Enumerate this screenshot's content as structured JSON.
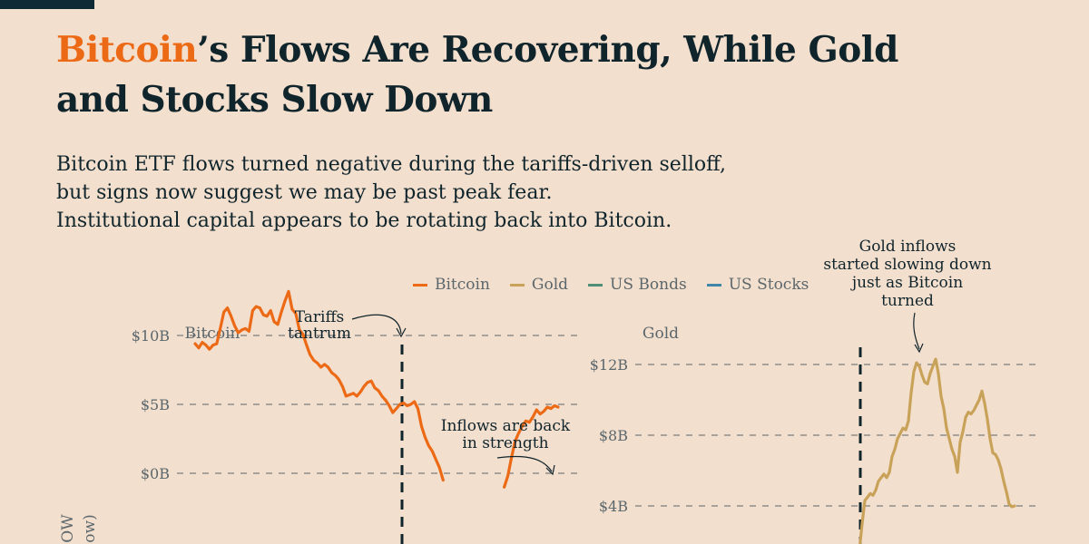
{
  "header": {
    "title_highlight": "Bitcoin",
    "title_rest": "’s Flows Are Recovering, While Gold",
    "title_line2": "and Stocks Slow Down",
    "subtitle": [
      "Bitcoin ETF flows turned negative during the tariffs-driven selloff,",
      "but signs now suggest we may be past peak fear.",
      "Institutional capital appears to be rotating back into Bitcoin."
    ]
  },
  "legend": [
    {
      "label": "Bitcoin",
      "color": "#ec6a16"
    },
    {
      "label": "Gold",
      "color": "#c9a25a"
    },
    {
      "label": "US Bonds",
      "color": "#4f8f78"
    },
    {
      "label": "US Stocks",
      "color": "#3f86a8"
    }
  ],
  "annotations": {
    "tariffs": [
      "Tariffs",
      "tantrum"
    ],
    "inflows": [
      "Inflows are back",
      "in strength"
    ],
    "gold_note": [
      "Gold inflows",
      "started slowing down",
      "just as Bitcoin",
      "turned"
    ]
  },
  "y_axis_label_fragments": [
    "OW",
    "ow)"
  ],
  "chart_data": [
    {
      "type": "line",
      "title": "Bitcoin",
      "series": [
        {
          "name": "Bitcoin",
          "color": "#ec6a16"
        }
      ],
      "y_ticks": [
        {
          "value": 10,
          "label": "$10B"
        },
        {
          "value": 5,
          "label": "$5B"
        },
        {
          "value": 0,
          "label": "$0B"
        }
      ],
      "grid": "dashed horizontal",
      "event_marker_index": 63,
      "values": [
        9.4,
        9.1,
        9.5,
        9.3,
        9.0,
        9.3,
        9.4,
        10.5,
        11.7,
        12.0,
        11.4,
        10.7,
        10.2,
        10.4,
        10.5,
        10.3,
        11.8,
        12.1,
        12.0,
        11.5,
        11.4,
        11.8,
        11.0,
        10.8,
        11.7,
        12.5,
        13.2,
        11.9,
        11.6,
        10.4,
        10.1,
        9.3,
        8.6,
        8.2,
        8.0,
        7.7,
        7.9,
        7.7,
        7.3,
        7.1,
        6.8,
        6.3,
        5.6,
        5.7,
        5.8,
        5.6,
        5.9,
        6.3,
        6.6,
        6.7,
        6.2,
        6.0,
        5.6,
        5.3,
        4.9,
        4.4,
        4.7,
        5.0,
        5.1,
        4.9,
        5.0,
        5.2,
        4.7,
        3.4,
        2.6,
        2.0,
        1.6,
        1.0,
        0.4,
        -0.5,
        null,
        null,
        null,
        null,
        null,
        null,
        null,
        null,
        null,
        null,
        null,
        null,
        null,
        null,
        null,
        null,
        -1.0,
        -0.2,
        1.1,
        2.3,
        2.9,
        3.4,
        3.8,
        3.7,
        4.1,
        4.6,
        4.3,
        4.5,
        4.8,
        4.7,
        4.9,
        4.8
      ]
    },
    {
      "type": "line",
      "title": "Gold",
      "series": [
        {
          "name": "Gold",
          "color": "#c9a25a"
        }
      ],
      "y_ticks": [
        {
          "value": 12,
          "label": "$12B"
        },
        {
          "value": 8,
          "label": "$8B"
        },
        {
          "value": 4,
          "label": "$4B"
        }
      ],
      "grid": "dashed horizontal",
      "event_marker_index": 0,
      "values": [
        1.5,
        3.0,
        4.3,
        4.5,
        4.7,
        4.6,
        4.9,
        5.4,
        5.6,
        5.8,
        5.6,
        5.9,
        6.8,
        7.2,
        7.8,
        8.1,
        8.4,
        8.3,
        8.8,
        10.4,
        11.6,
        12.1,
        11.9,
        11.4,
        11.0,
        10.9,
        11.5,
        11.9,
        12.3,
        11.5,
        10.2,
        9.5,
        8.4,
        7.8,
        7.2,
        6.8,
        5.9,
        7.6,
        8.2,
        9.0,
        9.3,
        9.2,
        9.4,
        9.7,
        10.0,
        10.5,
        9.8,
        8.9,
        7.8,
        7.0,
        6.9,
        6.6,
        6.1,
        5.4,
        4.8,
        4.1,
        3.95,
        4.0
      ]
    }
  ]
}
